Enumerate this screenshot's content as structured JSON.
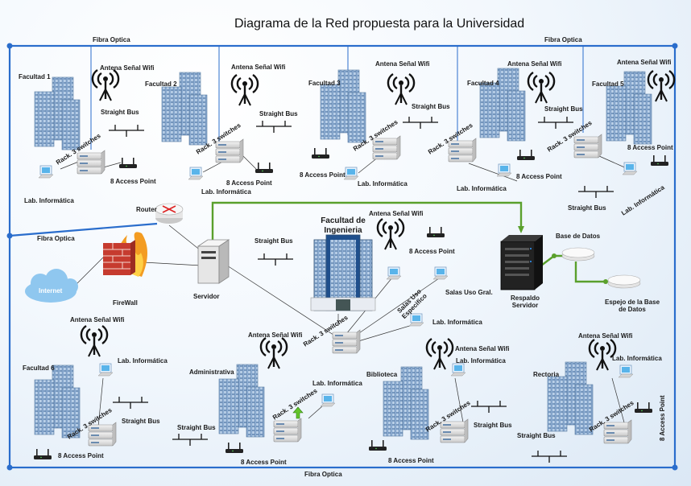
{
  "title": "Diagrama de la Red propuesta para la Universidad",
  "colors": {
    "fibra": "#2a6dcc",
    "green_link": "#5aa02c"
  },
  "labels": {
    "fibra": "Fibra Optica",
    "antena": "Antena Señal Wifi",
    "straight_bus": "Straight Bus",
    "rack": "Rack. 3 switches",
    "ap8": "8 Access Point",
    "lab": "Lab. Informática",
    "router": "Router",
    "firewall": "FireWall",
    "internet": "Internet",
    "servidor": "Servidor",
    "fac_ing_1": "Facultad de",
    "fac_ing_2": "Ingenieria",
    "salas_uso_esp": "Salas Uso Especifico",
    "salas_uso_gral": "Salas Uso Gral.",
    "base_datos": "Base de Datos",
    "respaldo_1": "Respaldo",
    "respaldo_2": "Servidor",
    "espejo_1": "Espejo de la Base",
    "espejo_2": "de Datos"
  },
  "buildings": {
    "f1": "Facultad 1",
    "f2": "Facultad 2",
    "f3": "Facultad 3",
    "f4": "Facultad 4",
    "f5": "Facultad 5",
    "f6": "Facultad 6",
    "adm": "Administrativa",
    "bib": "Biblioteca",
    "rec": "Rectoria"
  }
}
